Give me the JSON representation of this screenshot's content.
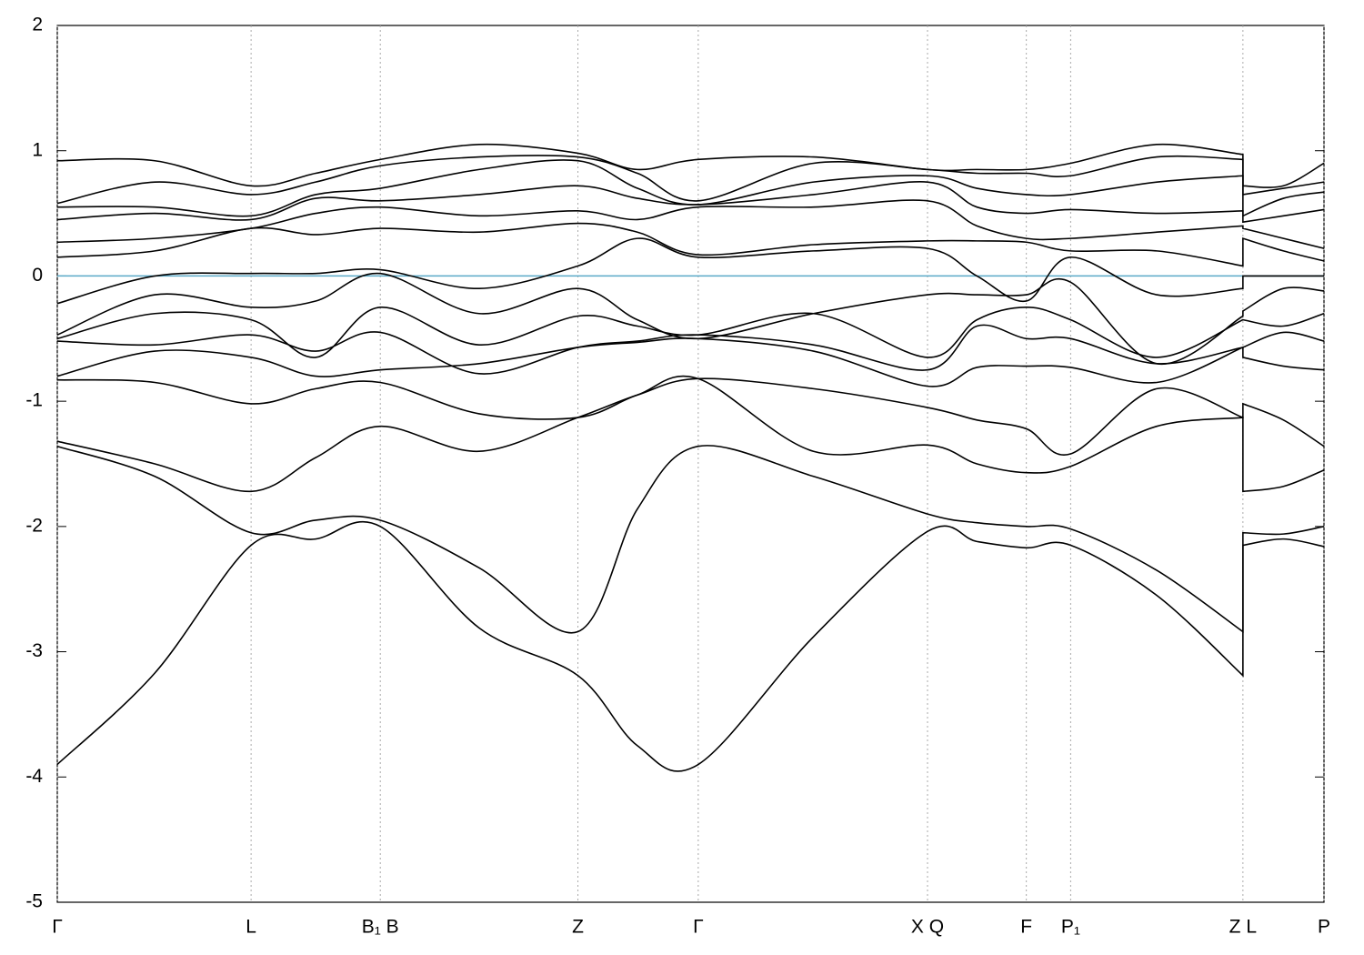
{
  "chart_data": {
    "type": "line",
    "x": [
      0,
      0.077,
      0.153,
      0.204,
      0.255,
      0.333,
      0.411,
      0.458,
      0.506,
      0.597,
      0.687,
      0.726,
      0.765,
      0.8,
      0.868,
      0.936,
      0.936,
      0.968,
      1.0
    ],
    "xlim": [
      0,
      1.0
    ],
    "xticks": [
      {
        "value": 0,
        "label": "Γ"
      },
      {
        "value": 0.153,
        "label": "L"
      },
      {
        "value": 0.255,
        "label": "B₁ B"
      },
      {
        "value": 0.411,
        "label": "Z"
      },
      {
        "value": 0.506,
        "label": "Γ"
      },
      {
        "value": 0.687,
        "label": "X Q"
      },
      {
        "value": 0.765,
        "label": "F"
      },
      {
        "value": 0.8,
        "label": "P₁"
      },
      {
        "value": 0.936,
        "label": "Z L"
      },
      {
        "value": 1.0,
        "label": "P"
      }
    ],
    "ylim": [
      -5,
      2
    ],
    "yticks": [
      -5,
      -4,
      -3,
      -2,
      -1,
      0,
      1,
      2
    ],
    "grid_x": true,
    "hline": {
      "value": 0,
      "color": "#5aaac8"
    },
    "series": [
      {
        "color": "#000000",
        "values": [
          -3.9,
          -3.17,
          -2.15,
          -2.1,
          -2.0,
          -2.81,
          -3.19,
          -3.75,
          -3.9,
          -2.88,
          -2.04,
          -2.12,
          -2.17,
          -2.15,
          -2.55,
          -3.19,
          -2.15,
          -2.1,
          -2.16
        ]
      },
      {
        "color": "#000000",
        "values": [
          -1.36,
          -1.6,
          -2.05,
          -1.95,
          -1.95,
          -2.33,
          -2.84,
          -1.86,
          -1.36,
          -1.6,
          -1.9,
          -1.97,
          -2.0,
          -2.02,
          -2.35,
          -2.84,
          -2.05,
          -2.06,
          -2.0
        ]
      },
      {
        "color": "#000000",
        "values": [
          -1.32,
          -1.5,
          -1.72,
          -1.45,
          -1.2,
          -1.4,
          -1.13,
          -0.95,
          -0.82,
          -1.4,
          -1.35,
          -1.5,
          -1.57,
          -1.52,
          -1.2,
          -1.13,
          -1.72,
          -1.68,
          -1.55
        ]
      },
      {
        "color": "#000000",
        "values": [
          -0.83,
          -0.85,
          -1.02,
          -0.9,
          -0.85,
          -1.1,
          -1.13,
          -0.95,
          -0.82,
          -0.9,
          -1.05,
          -1.15,
          -1.22,
          -1.42,
          -0.9,
          -1.13,
          -1.02,
          -1.15,
          -1.36
        ]
      },
      {
        "color": "#000000",
        "values": [
          -0.8,
          -0.6,
          -0.65,
          -0.8,
          -0.75,
          -0.7,
          -0.57,
          -0.53,
          -0.5,
          -0.6,
          -0.88,
          -0.73,
          -0.72,
          -0.73,
          -0.85,
          -0.57,
          -0.65,
          -0.72,
          -0.75
        ]
      },
      {
        "color": "#000000",
        "values": [
          -0.52,
          -0.55,
          -0.47,
          -0.6,
          -0.45,
          -0.78,
          -0.57,
          -0.52,
          -0.47,
          -0.55,
          -0.75,
          -0.4,
          -0.5,
          -0.5,
          -0.7,
          -0.57,
          -0.57,
          -0.45,
          -0.52
        ]
      },
      {
        "color": "#000000",
        "values": [
          -0.5,
          -0.3,
          -0.35,
          -0.65,
          -0.25,
          -0.55,
          -0.32,
          -0.4,
          -0.47,
          -0.3,
          -0.65,
          -0.35,
          -0.25,
          -0.35,
          -0.65,
          -0.35,
          -0.35,
          -0.4,
          -0.3
        ]
      },
      {
        "color": "#000000",
        "values": [
          -0.47,
          -0.15,
          -0.25,
          -0.2,
          0.02,
          -0.3,
          -0.1,
          -0.35,
          -0.5,
          -0.3,
          -0.15,
          -0.15,
          -0.15,
          -0.05,
          -0.7,
          -0.32,
          -0.28,
          -0.1,
          -0.12
        ]
      },
      {
        "color": "#000000",
        "values": [
          -0.22,
          0.0,
          0.02,
          0.02,
          0.05,
          -0.1,
          0.08,
          0.3,
          0.15,
          0.2,
          0.22,
          0.0,
          -0.2,
          0.15,
          -0.15,
          -0.1,
          0.0,
          0.0,
          0.0
        ]
      },
      {
        "color": "#000000",
        "values": [
          0.15,
          0.2,
          0.38,
          0.33,
          0.38,
          0.35,
          0.42,
          0.35,
          0.17,
          0.25,
          0.28,
          0.28,
          0.27,
          0.2,
          0.2,
          0.08,
          0.3,
          0.2,
          0.12
        ]
      },
      {
        "color": "#000000",
        "values": [
          0.27,
          0.3,
          0.38,
          0.5,
          0.55,
          0.48,
          0.52,
          0.45,
          0.55,
          0.55,
          0.6,
          0.4,
          0.3,
          0.3,
          0.35,
          0.4,
          0.38,
          0.3,
          0.22
        ]
      },
      {
        "color": "#000000",
        "values": [
          0.45,
          0.5,
          0.45,
          0.62,
          0.6,
          0.65,
          0.72,
          0.62,
          0.57,
          0.65,
          0.75,
          0.55,
          0.5,
          0.53,
          0.5,
          0.52,
          0.43,
          0.48,
          0.53
        ]
      },
      {
        "color": "#000000",
        "values": [
          0.55,
          0.55,
          0.48,
          0.65,
          0.7,
          0.85,
          0.92,
          0.7,
          0.57,
          0.75,
          0.8,
          0.7,
          0.65,
          0.65,
          0.75,
          0.8,
          0.48,
          0.62,
          0.67
        ]
      },
      {
        "color": "#000000",
        "values": [
          0.58,
          0.75,
          0.65,
          0.75,
          0.88,
          0.95,
          0.95,
          0.82,
          0.6,
          0.9,
          0.85,
          0.82,
          0.82,
          0.8,
          0.95,
          0.93,
          0.65,
          0.7,
          0.75
        ]
      },
      {
        "color": "#000000",
        "values": [
          0.92,
          0.92,
          0.72,
          0.82,
          0.93,
          1.05,
          0.98,
          0.85,
          0.93,
          0.95,
          0.85,
          0.85,
          0.85,
          0.9,
          1.05,
          0.97,
          0.72,
          0.72,
          0.9
        ]
      }
    ]
  }
}
